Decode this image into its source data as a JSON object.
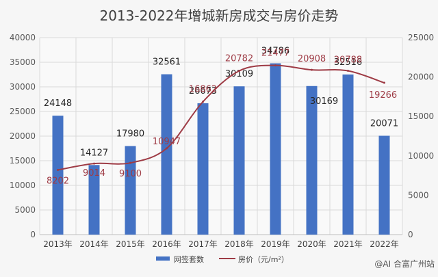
{
  "chart_data": {
    "type": "bar",
    "title": "2013-2022年增城新房成交与房价走势",
    "categories": [
      "2013年",
      "2014年",
      "2015年",
      "2016年",
      "2017年",
      "2018年",
      "2019年",
      "2020年",
      "2021年",
      "2022年"
    ],
    "series": [
      {
        "name": "网签套数",
        "type": "bar",
        "axis": "left",
        "color": "#4472c4",
        "values": [
          24148,
          14127,
          17980,
          32561,
          26673,
          30109,
          34786,
          30169,
          32516,
          20071
        ]
      },
      {
        "name": "房价（元/m²）",
        "type": "line",
        "axis": "right",
        "color": "#9e3b45",
        "values": [
          8202,
          9014,
          9100,
          10947,
          16862,
          20782,
          21477,
          20908,
          20788,
          19266
        ]
      }
    ],
    "left_axis": {
      "ylim": [
        0,
        40000
      ],
      "ticks": [
        "0",
        "5000",
        "10000",
        "15000",
        "20000",
        "25000",
        "30000",
        "35000",
        "40000"
      ]
    },
    "right_axis": {
      "ylim": [
        0,
        25000
      ],
      "ticks": [
        "0",
        "5000",
        "10000",
        "15000",
        "20000",
        "25000"
      ]
    },
    "bar_labels": [
      "24148",
      "14127",
      "17980",
      "32561",
      "26673",
      "30109",
      "34786",
      "30169",
      "32516",
      "20071"
    ],
    "line_labels": [
      "8202",
      "9014",
      "9100",
      "10947",
      "16862",
      "20782",
      "21477",
      "20908",
      "20788",
      "19266"
    ],
    "legend": {
      "position": "bottom"
    },
    "watermark": "@AI 合富广州站",
    "grid": true
  }
}
